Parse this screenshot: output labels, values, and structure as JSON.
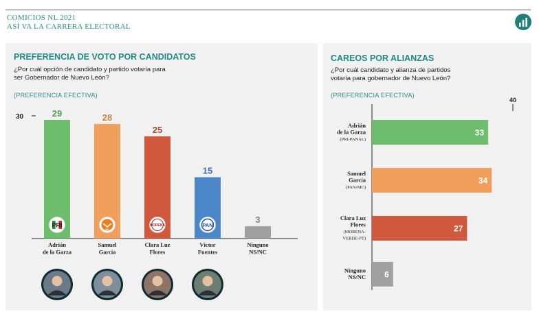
{
  "header": {
    "kicker_line1": "COMICIOS NL 2021",
    "kicker_line2": "ASÍ VA LA CARRERA ELECTORAL",
    "icon": "bar-chart-icon"
  },
  "left_panel": {
    "title": "PREFERENCIA DE VOTO POR CANDIDATOS",
    "question_line1": "¿Por cuál opción de candidato y partido votaría para",
    "question_line2": "ser Gobernador de Nuevo León?",
    "note": "(PREFERENCIA EFECTIVA)"
  },
  "right_panel": {
    "title": "CAREOS POR ALIANZAS",
    "question_line1": "¿Por cuál candidato y alianza de partidos",
    "question_line2": "votaría para gobernador de Nuevo León?",
    "note": "(PREFERENCIA EFECTIVA)"
  },
  "chart_data": [
    {
      "type": "bar",
      "orientation": "vertical",
      "categories": [
        [
          "Adrián",
          "de la Garza"
        ],
        [
          "Samuel",
          "García"
        ],
        [
          "Clara Luz",
          "Flores"
        ],
        [
          "Víctor",
          "Fuentes"
        ],
        [
          "Ninguno",
          "NS/NC"
        ]
      ],
      "values": [
        29,
        28,
        25,
        15,
        3
      ],
      "colors": [
        "#6dbd6d",
        "#f0a05c",
        "#cf583d",
        "#4a86c8",
        "#a0a0a0"
      ],
      "party_logos": [
        "PRI",
        "MC",
        "MORENA",
        "PAN",
        ""
      ],
      "ytick": 30,
      "ylim": [
        0,
        30
      ]
    },
    {
      "type": "bar",
      "orientation": "horizontal",
      "categories": [
        {
          "name": [
            "Adrián",
            "de la Garza"
          ],
          "alliance": [
            "(PRI-PANAL)"
          ]
        },
        {
          "name": [
            "Samuel",
            "García"
          ],
          "alliance": [
            "(PAN-MC)"
          ]
        },
        {
          "name": [
            "Clara Luz",
            "Flores"
          ],
          "alliance": [
            "(MORENA-",
            "VERDE-PT)"
          ]
        },
        {
          "name": [
            "Ninguno",
            "NS/NC"
          ],
          "alliance": []
        }
      ],
      "values": [
        33,
        34,
        27,
        6
      ],
      "colors": [
        "#6dbd6d",
        "#f0a05c",
        "#cf583d",
        "#a0a0a0"
      ],
      "xtick": 40,
      "xlim": [
        0,
        40
      ]
    }
  ]
}
